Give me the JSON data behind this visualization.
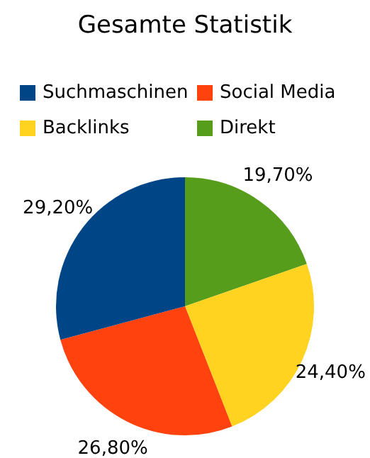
{
  "chart_data": {
    "type": "pie",
    "title": "Gesamte Statistik",
    "categories": [
      "Suchmaschinen",
      "Social Media",
      "Backlinks",
      "Direkt"
    ],
    "values": [
      29.2,
      26.8,
      24.4,
      19.7
    ],
    "colors": [
      "#004586",
      "#ff420e",
      "#ffd320",
      "#579d1c"
    ],
    "value_labels": [
      "29,20%",
      "26,80%",
      "24,40%",
      "19,70%"
    ],
    "legend": "top"
  }
}
